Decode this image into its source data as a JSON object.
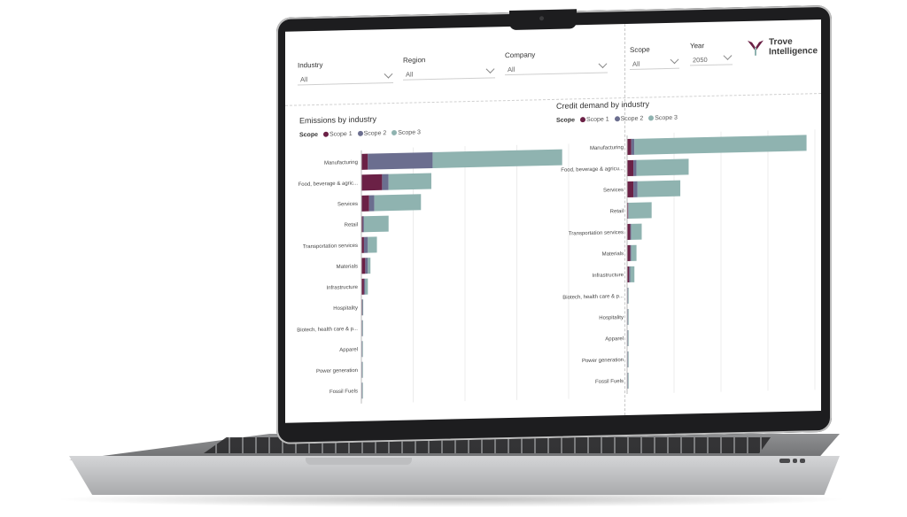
{
  "filters": {
    "industry": {
      "label": "Industry",
      "value": "All"
    },
    "region": {
      "label": "Region",
      "value": "All"
    },
    "company": {
      "label": "Company",
      "value": "All"
    },
    "scope": {
      "label": "Scope",
      "value": "All"
    },
    "year": {
      "label": "Year",
      "value": "2050"
    }
  },
  "logo": {
    "line1": "Trove",
    "line2": "Intelligence",
    "icon": "trove-mark-icon"
  },
  "colors": {
    "scope1": "#6b2146",
    "scope2": "#6b6e8f",
    "scope3": "#8fb3b0"
  },
  "chart_data": [
    {
      "type": "bar",
      "orientation": "horizontal",
      "stacked": true,
      "title": "Emissions by industry",
      "legend_title": "Scope",
      "legend_placement": "top-left",
      "grid": true,
      "categories": [
        "Manufacturing",
        "Food, beverage & agric...",
        "Services",
        "Retail",
        "Transportation services",
        "Materials",
        "Infrastructure",
        "Hospitality",
        "Biotech, health care & p...",
        "Apparel",
        "Power generation",
        "Fossil Fuels"
      ],
      "series": [
        {
          "name": "Scope 1",
          "values": [
            5,
            16,
            6,
            1,
            2,
            3,
            2,
            0.6,
            0.5,
            0.4,
            0.3,
            0.3
          ]
        },
        {
          "name": "Scope 2",
          "values": [
            50,
            5,
            4,
            1,
            3,
            2,
            1,
            0.3,
            0.3,
            0.2,
            0.2,
            0.2
          ]
        },
        {
          "name": "Scope 3",
          "values": [
            100,
            33,
            36,
            19,
            7,
            2,
            2,
            0.4,
            0.4,
            0.3,
            0.2,
            0.2
          ]
        }
      ],
      "xlim": [
        0,
        160
      ]
    },
    {
      "type": "bar",
      "orientation": "horizontal",
      "stacked": true,
      "title": "Credit demand by industry",
      "legend_title": "Scope",
      "legend_placement": "top-left",
      "grid": true,
      "categories": [
        "Manufacturing",
        "Food, beverage & agricu...",
        "Services",
        "Retail",
        "Transportation services",
        "Materials",
        "Infrastructure",
        "Biotech, health care & p...",
        "Hospitality",
        "Apparel",
        "Power generation",
        "Fossil Fuels"
      ],
      "series": [
        {
          "name": "Scope 1",
          "values": [
            4,
            6,
            6,
            1,
            3,
            3,
            2,
            0.5,
            0.5,
            0.4,
            0.3,
            0.3
          ]
        },
        {
          "name": "Scope 2",
          "values": [
            3,
            3,
            4,
            0.5,
            1,
            1,
            1,
            0.3,
            0.3,
            0.2,
            0.2,
            0.2
          ]
        },
        {
          "name": "Scope 3",
          "values": [
            165,
            50,
            41,
            22,
            10,
            5,
            4,
            0.4,
            0.4,
            0.3,
            0.2,
            0.2
          ]
        }
      ],
      "xlim": [
        0,
        180
      ]
    }
  ]
}
